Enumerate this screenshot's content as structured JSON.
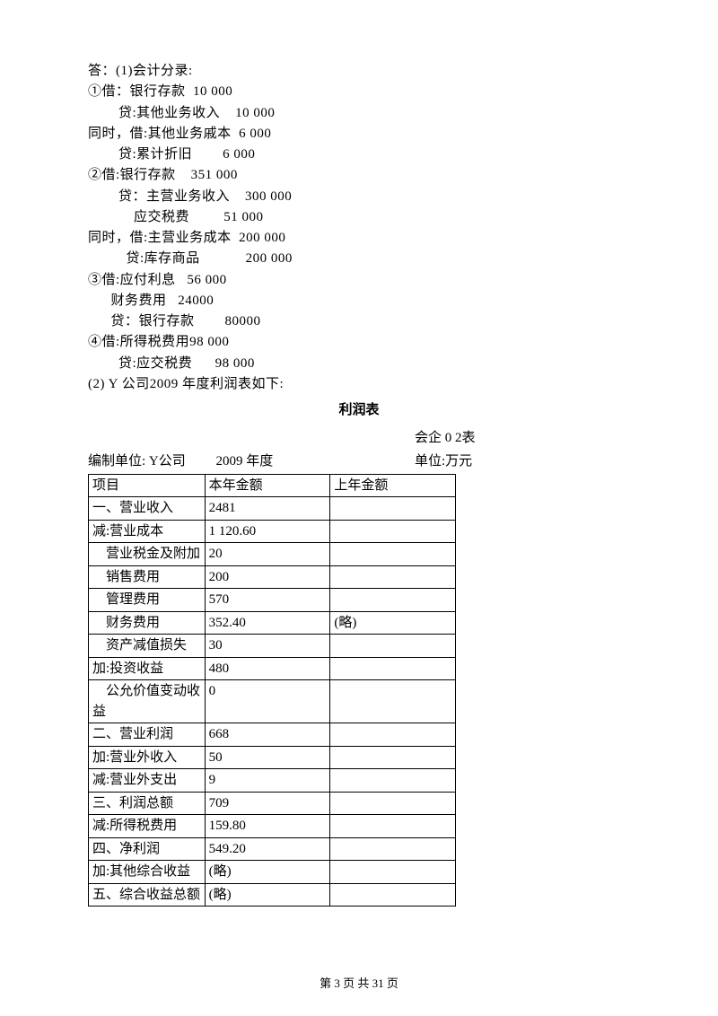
{
  "entries": {
    "l1": "答：(1)会计分录:",
    "l2": "①借：银行存款  10 000",
    "l3": "        贷:其他业务收入    10 000",
    "l4": "同时，借:其他业务戚本  6 000",
    "l5": "        贷:累计折旧        6 000",
    "l6": "②借:银行存款    351 000",
    "l7": "        贷：主营业务收入    300 000",
    "l8": "            应交税费         51 000",
    "l9": "同时，借:主营业务成本  200 000",
    "l10": "          贷:库存商品            200 000",
    "l11": "③借:应付利息   56 000",
    "l12": "      财务费用   24000",
    "l13": "      贷：银行存款        80000",
    "l14": "④借:所得税费用98 000",
    "l15": "        贷:应交税费      98 000",
    "l16": "(2) Y 公司2009 年度利润表如下:"
  },
  "tableTitle": "利润表",
  "headerRight1": "会企 0 2表",
  "headerLeft": "编制单位: Y公司         2009 年度",
  "headerRight2": "单位:万元",
  "profitTable": {
    "columns": [
      "项目",
      "本年金额",
      "上年金额"
    ],
    "rows": [
      [
        "一、营业收入",
        "2481",
        ""
      ],
      [
        "减:营业成本",
        "1 120.60",
        ""
      ],
      [
        "    营业税金及附加",
        "20",
        ""
      ],
      [
        "    销售费用",
        "200",
        ""
      ],
      [
        "    管理费用",
        "570",
        ""
      ],
      [
        "    财务费用",
        "352.40",
        "(略)"
      ],
      [
        "    资产减值损失",
        "30",
        ""
      ],
      [
        "加:投资收益",
        "480",
        ""
      ],
      [
        "    公允价值变动收益",
        "0",
        ""
      ],
      [
        "二、营业利润",
        "668",
        ""
      ],
      [
        "加:营业外收入",
        "50",
        ""
      ],
      [
        "减:营业外支出",
        "9",
        ""
      ],
      [
        "三、利润总额",
        "709",
        ""
      ],
      [
        "减:所得税费用",
        "159.80",
        ""
      ],
      [
        "四、净利润",
        "549.20",
        ""
      ],
      [
        "加:其他综合收益",
        "(略)",
        ""
      ],
      [
        "五、综合收益总额",
        "(略)",
        ""
      ]
    ]
  },
  "footer": "第 3 页 共 31 页"
}
